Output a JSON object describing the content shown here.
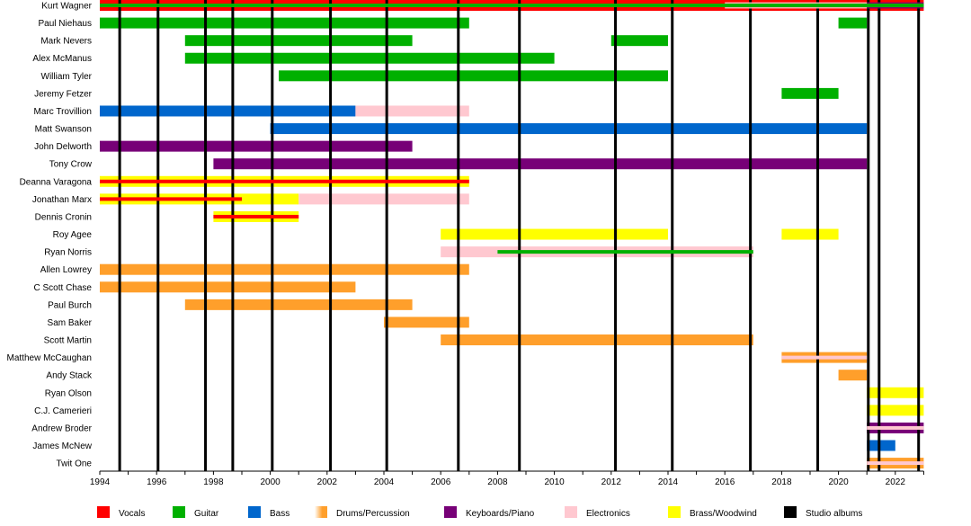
{
  "chart_data": {
    "type": "timeline",
    "xlim": [
      1994,
      2023
    ],
    "x_ticks": [
      1994,
      1996,
      1998,
      2000,
      2002,
      2004,
      2006,
      2008,
      2010,
      2012,
      2014,
      2016,
      2018,
      2020,
      2022
    ],
    "colors": {
      "Vocals": "#ff0000",
      "Guitar": "#00b000",
      "Bass": "#0066cc",
      "Drums/Percussion": "#ff9f2b",
      "Keyboards/Piano": "#770077",
      "Electronics": "#ffc8d0",
      "Brass/Woodwind": "#ffff00",
      "Studio albums": "#000000"
    },
    "legend": [
      "Vocals",
      "Guitar",
      "Bass",
      "Drums/Percussion",
      "Keyboards/Piano",
      "Electronics",
      "Brass/Woodwind",
      "Studio albums"
    ],
    "legend_position": "bottom",
    "studio_albums": [
      1994.7,
      1996.05,
      1997.72,
      1998.68,
      2000.07,
      2002.12,
      2004.1,
      2006.62,
      2008.77,
      2012.15,
      2014.15,
      2016.9,
      2019.27,
      2021.05,
      2021.43,
      2022.82
    ],
    "members": [
      {
        "name": "Kurt Wagner",
        "bars": [
          {
            "role": "Vocals",
            "from": 1994,
            "to": 2023
          },
          {
            "role": "Electronics",
            "from": 2016,
            "to": 2021,
            "layer": "mid"
          },
          {
            "role": "Keyboards/Piano",
            "from": 2021,
            "to": 2023,
            "layer": "mid"
          },
          {
            "role": "Guitar",
            "from": 1994,
            "to": 2023,
            "layer": "stripe"
          }
        ]
      },
      {
        "name": "Paul Niehaus",
        "bars": [
          {
            "role": "Guitar",
            "from": 1994,
            "to": 2007
          },
          {
            "role": "Guitar",
            "from": 2020,
            "to": 2021
          }
        ]
      },
      {
        "name": "Mark Nevers",
        "bars": [
          {
            "role": "Guitar",
            "from": 1997,
            "to": 2005
          },
          {
            "role": "Guitar",
            "from": 2012,
            "to": 2014
          }
        ]
      },
      {
        "name": "Alex McManus",
        "bars": [
          {
            "role": "Guitar",
            "from": 1997,
            "to": 2010
          }
        ]
      },
      {
        "name": "William Tyler",
        "bars": [
          {
            "role": "Guitar",
            "from": 2000.3,
            "to": 2014
          }
        ]
      },
      {
        "name": "Jeremy Fetzer",
        "bars": [
          {
            "role": "Guitar",
            "from": 2018,
            "to": 2020
          }
        ]
      },
      {
        "name": "Marc Trovillion",
        "bars": [
          {
            "role": "Bass",
            "from": 1994,
            "to": 2003
          },
          {
            "role": "Electronics",
            "from": 2003,
            "to": 2007
          }
        ]
      },
      {
        "name": "Matt Swanson",
        "bars": [
          {
            "role": "Bass",
            "from": 2000,
            "to": 2021
          }
        ]
      },
      {
        "name": "John Delworth",
        "bars": [
          {
            "role": "Keyboards/Piano",
            "from": 1994,
            "to": 2005
          }
        ]
      },
      {
        "name": "Tony Crow",
        "bars": [
          {
            "role": "Keyboards/Piano",
            "from": 1998,
            "to": 2021
          }
        ]
      },
      {
        "name": "Deanna Varagona",
        "bars": [
          {
            "role": "Brass/Woodwind",
            "from": 1994,
            "to": 2007
          },
          {
            "role": "Vocals",
            "from": 1994,
            "to": 2007,
            "layer": "stripe"
          }
        ]
      },
      {
        "name": "Jonathan Marx",
        "bars": [
          {
            "role": "Brass/Woodwind",
            "from": 1994,
            "to": 2001
          },
          {
            "role": "Electronics",
            "from": 2001,
            "to": 2007
          },
          {
            "role": "Vocals",
            "from": 1994,
            "to": 1999,
            "layer": "stripe"
          }
        ]
      },
      {
        "name": "Dennis Cronin",
        "bars": [
          {
            "role": "Brass/Woodwind",
            "from": 1998,
            "to": 2001
          },
          {
            "role": "Vocals",
            "from": 1998,
            "to": 2001,
            "layer": "stripe"
          }
        ]
      },
      {
        "name": "Roy Agee",
        "bars": [
          {
            "role": "Brass/Woodwind",
            "from": 2006,
            "to": 2014
          },
          {
            "role": "Brass/Woodwind",
            "from": 2018,
            "to": 2020
          }
        ]
      },
      {
        "name": "Ryan Norris",
        "bars": [
          {
            "role": "Electronics",
            "from": 2006,
            "to": 2017
          },
          {
            "role": "Guitar",
            "from": 2008,
            "to": 2017,
            "layer": "stripe"
          }
        ]
      },
      {
        "name": "Allen Lowrey",
        "bars": [
          {
            "role": "Drums/Percussion",
            "from": 1994,
            "to": 2007
          }
        ]
      },
      {
        "name": "C Scott Chase",
        "bars": [
          {
            "role": "Drums/Percussion",
            "from": 1994,
            "to": 2003
          }
        ]
      },
      {
        "name": "Paul Burch",
        "bars": [
          {
            "role": "Drums/Percussion",
            "from": 1997,
            "to": 2005
          }
        ]
      },
      {
        "name": "Sam Baker",
        "bars": [
          {
            "role": "Drums/Percussion",
            "from": 2004,
            "to": 2007
          }
        ]
      },
      {
        "name": "Scott Martin",
        "bars": [
          {
            "role": "Drums/Percussion",
            "from": 2006,
            "to": 2017
          }
        ]
      },
      {
        "name": "Matthew McCaughan",
        "bars": [
          {
            "role": "Drums/Percussion",
            "from": 2018,
            "to": 2021
          },
          {
            "role": "Electronics",
            "from": 2018,
            "to": 2021,
            "layer": "stripe"
          }
        ]
      },
      {
        "name": "Andy Stack",
        "bars": [
          {
            "role": "Drums/Percussion",
            "from": 2020,
            "to": 2021
          }
        ]
      },
      {
        "name": "Ryan Olson",
        "bars": [
          {
            "role": "Brass/Woodwind",
            "from": 2021,
            "to": 2023
          }
        ]
      },
      {
        "name": "C.J. Camerieri",
        "bars": [
          {
            "role": "Brass/Woodwind",
            "from": 2021,
            "to": 2023
          }
        ]
      },
      {
        "name": "Andrew Broder",
        "bars": [
          {
            "role": "Keyboards/Piano",
            "from": 2021,
            "to": 2023
          },
          {
            "role": "Electronics",
            "from": 2021,
            "to": 2023,
            "layer": "stripe"
          }
        ]
      },
      {
        "name": "James McNew",
        "bars": [
          {
            "role": "Bass",
            "from": 2021,
            "to": 2022
          }
        ]
      },
      {
        "name": "Twit One",
        "bars": [
          {
            "role": "Drums/Percussion",
            "from": 2021,
            "to": 2023
          },
          {
            "role": "Electronics",
            "from": 2021,
            "to": 2023,
            "layer": "stripe"
          }
        ]
      }
    ]
  }
}
